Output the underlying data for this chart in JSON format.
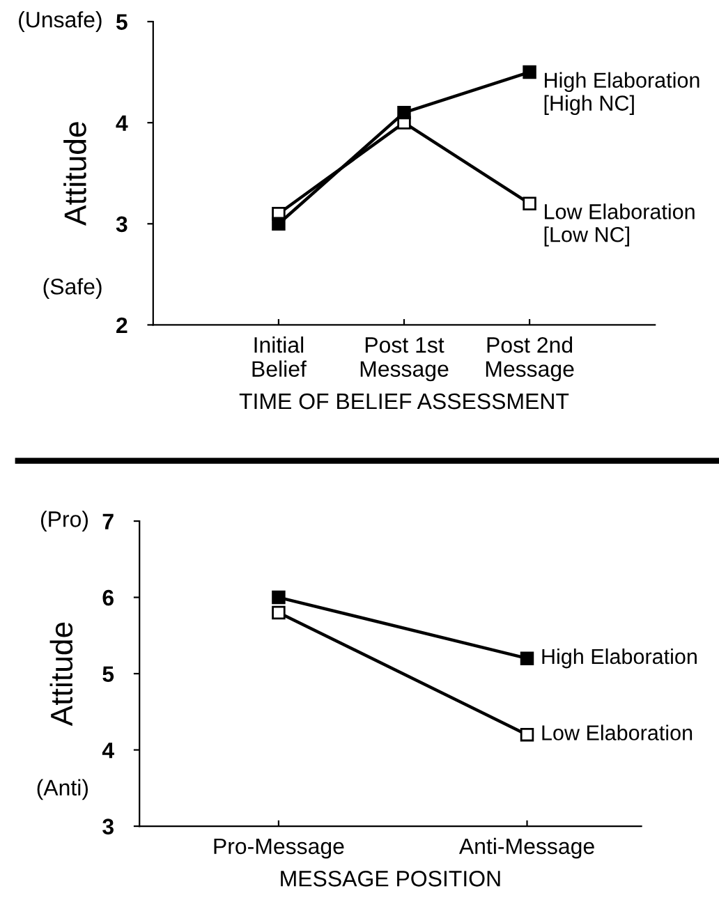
{
  "chart_data": [
    {
      "type": "line",
      "xlabel": "TIME OF BELIEF ASSESSMENT",
      "ylabel": "Attitude",
      "categories": [
        "Initial\nBelief",
        "Post 1st\nMessage",
        "Post 2nd\nMessage"
      ],
      "series": [
        {
          "name": "High Elaboration\n[High NC]",
          "color": "#000000",
          "values": [
            3.0,
            4.1,
            4.5
          ]
        },
        {
          "name": "Low Elaboration\n[Low NC]",
          "color": "#000000",
          "values": [
            3.1,
            4.0,
            3.2
          ]
        }
      ],
      "ylim": [
        2,
        5
      ],
      "yticks": [
        2,
        3,
        4,
        5
      ],
      "annotations": [
        "(Unsafe)",
        "(Safe)"
      ],
      "marker": "square",
      "line_style": "solid",
      "grid": false,
      "legend": false
    },
    {
      "type": "line",
      "xlabel": "MESSAGE POSITION",
      "ylabel": "Attitude",
      "categories": [
        "Pro-Message",
        "Anti-Message"
      ],
      "series": [
        {
          "name": "High Elaboration",
          "color": "#000000",
          "values": [
            6.0,
            5.2
          ]
        },
        {
          "name": "Low Elaboration",
          "color": "#000000",
          "values": [
            5.8,
            4.2
          ]
        }
      ],
      "ylim": [
        3,
        7
      ],
      "yticks": [
        3,
        4,
        5,
        6,
        7
      ],
      "annotations": [
        "(Pro)",
        "(Anti)"
      ],
      "marker": "square",
      "line_style": "solid",
      "grid": false,
      "legend": false
    }
  ]
}
